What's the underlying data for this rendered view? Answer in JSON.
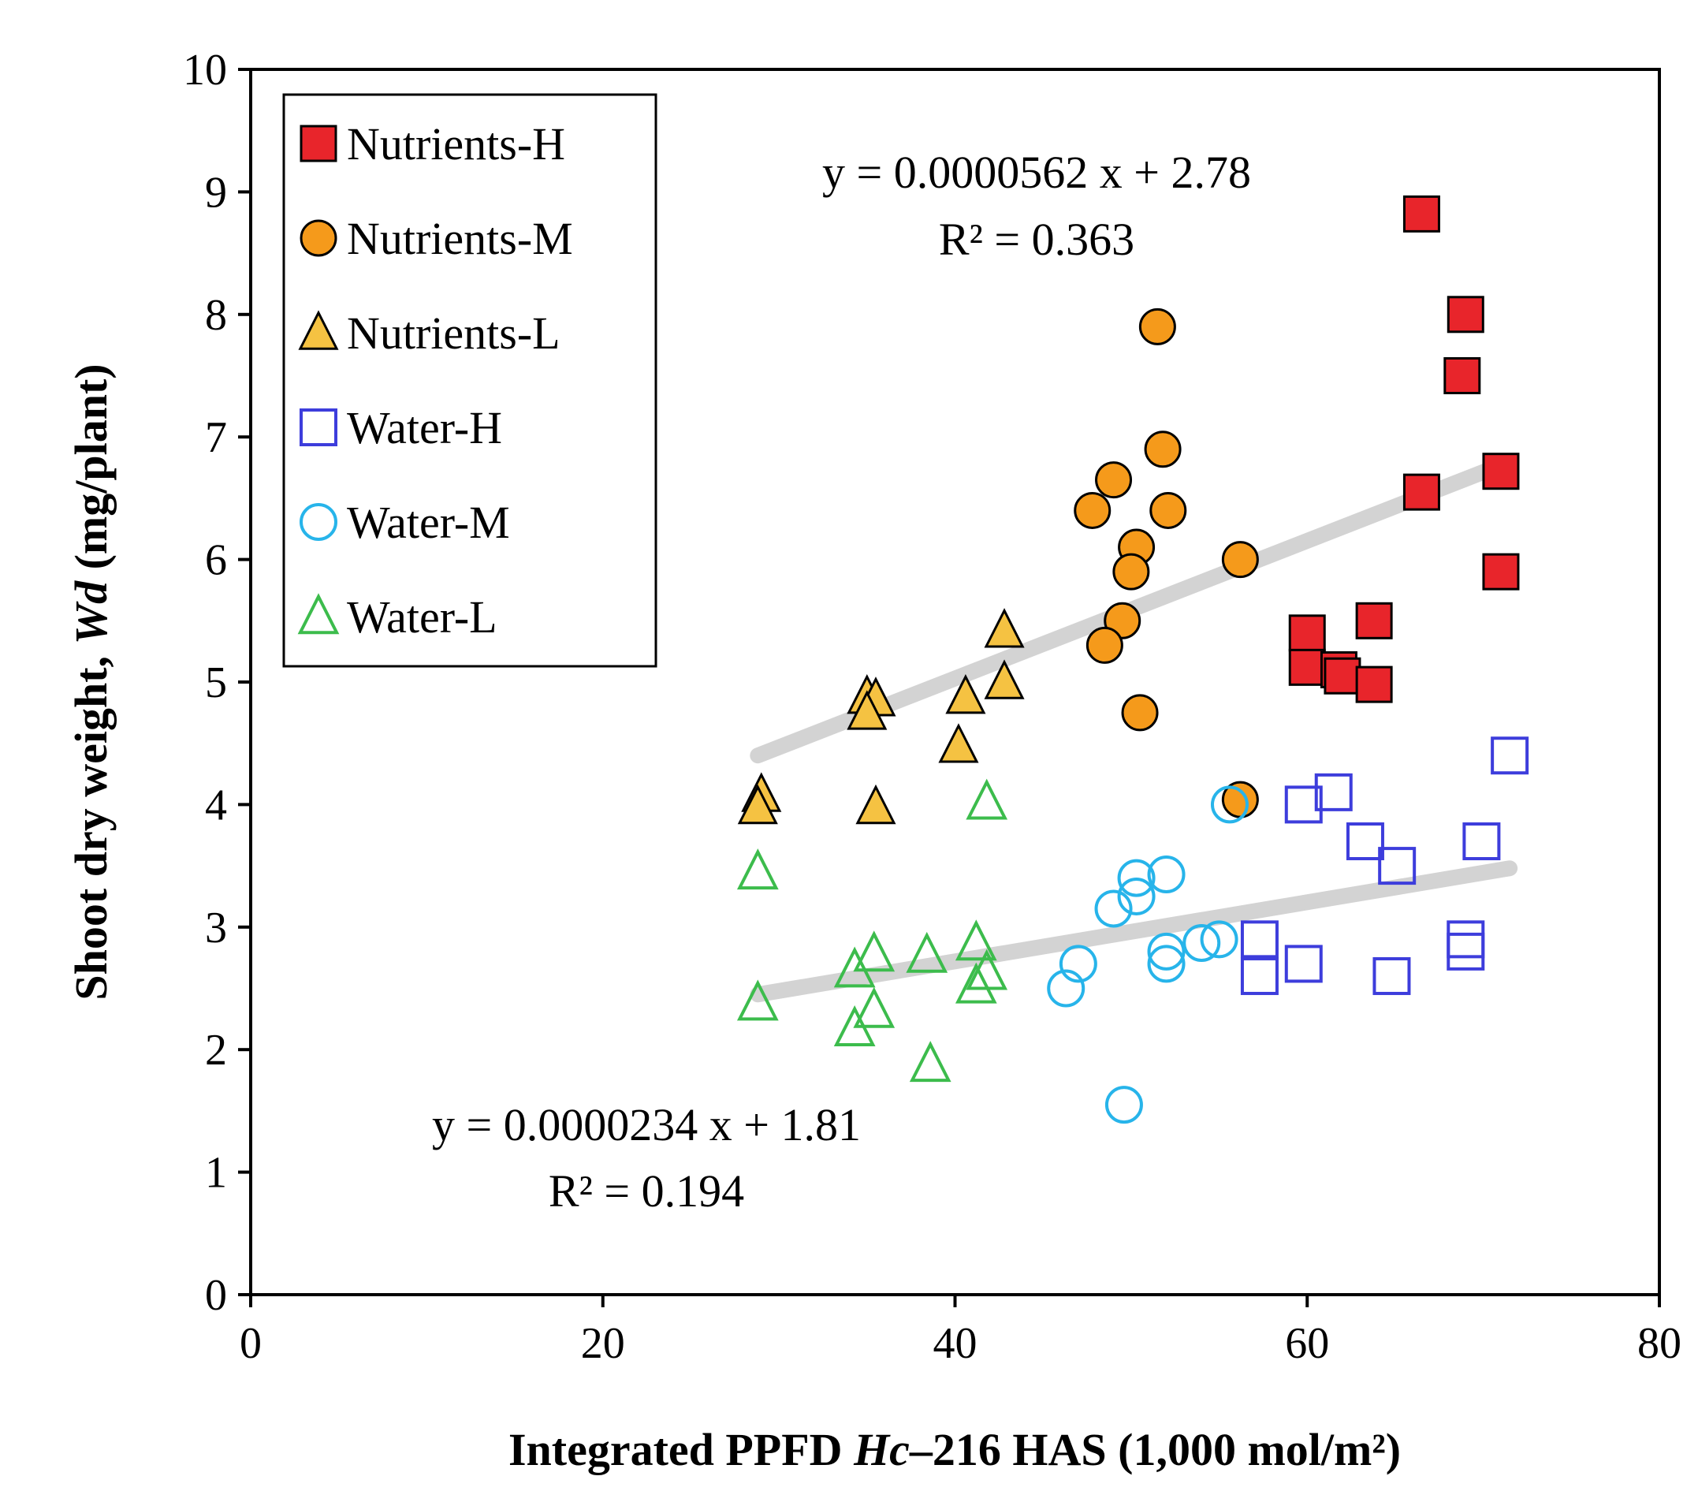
{
  "chart_data": {
    "type": "scatter",
    "title": "",
    "xlabel": {
      "pre": "Integrated PPFD ",
      "italic": "Hc",
      "post": "–216 HAS (1,000 mol/m²)"
    },
    "ylabel": {
      "pre": "Shoot dry weight, ",
      "italic": "Wd",
      "post": " (mg/plant)"
    },
    "xlim": [
      0,
      80
    ],
    "ylim": [
      0,
      10
    ],
    "xticks": [
      0,
      20,
      40,
      60,
      80
    ],
    "yticks": [
      0,
      1,
      2,
      3,
      4,
      5,
      6,
      7,
      8,
      9,
      10
    ],
    "legend_position": "top-left",
    "series": [
      {
        "name": "Nutrients-H",
        "marker": "square",
        "filled": true,
        "fill": "#e8252b",
        "stroke": "#000000",
        "points": [
          [
            66.5,
            8.82
          ],
          [
            69.0,
            8.0
          ],
          [
            68.8,
            7.5
          ],
          [
            71.0,
            6.72
          ],
          [
            66.5,
            6.55
          ],
          [
            71.0,
            5.9
          ],
          [
            63.8,
            5.5
          ],
          [
            60.0,
            5.4
          ],
          [
            60.0,
            5.12
          ],
          [
            61.8,
            5.1
          ],
          [
            62.0,
            5.05
          ],
          [
            63.8,
            4.98
          ]
        ]
      },
      {
        "name": "Nutrients-M",
        "marker": "circle",
        "filled": true,
        "fill": "#f59a1b",
        "stroke": "#000000",
        "points": [
          [
            51.5,
            7.9
          ],
          [
            51.8,
            6.9
          ],
          [
            49.0,
            6.65
          ],
          [
            47.8,
            6.4
          ],
          [
            52.1,
            6.4
          ],
          [
            50.3,
            6.1
          ],
          [
            56.2,
            6.0
          ],
          [
            50.0,
            5.9
          ],
          [
            49.5,
            5.5
          ],
          [
            48.5,
            5.3
          ],
          [
            50.5,
            4.75
          ],
          [
            56.2,
            4.04
          ]
        ]
      },
      {
        "name": "Nutrients-L",
        "marker": "triangle",
        "filled": true,
        "fill": "#f5c242",
        "stroke": "#000000",
        "points": [
          [
            42.8,
            5.42
          ],
          [
            42.8,
            5.0
          ],
          [
            35.0,
            4.88
          ],
          [
            35.5,
            4.86
          ],
          [
            40.6,
            4.88
          ],
          [
            35.0,
            4.75
          ],
          [
            40.2,
            4.48
          ],
          [
            29.0,
            4.08
          ],
          [
            28.8,
            3.98
          ],
          [
            35.5,
            3.98
          ]
        ]
      },
      {
        "name": "Water-H",
        "marker": "square",
        "filled": false,
        "fill": "none",
        "stroke": "#3d3ddc",
        "points": [
          [
            71.5,
            4.4
          ],
          [
            61.5,
            4.1
          ],
          [
            59.8,
            4.0
          ],
          [
            63.3,
            3.7
          ],
          [
            69.9,
            3.7
          ],
          [
            65.1,
            3.5
          ],
          [
            57.3,
            2.9
          ],
          [
            69.0,
            2.9
          ],
          [
            69.0,
            2.8
          ],
          [
            59.8,
            2.7
          ],
          [
            57.3,
            2.6
          ],
          [
            64.8,
            2.6
          ]
        ]
      },
      {
        "name": "Water-M",
        "marker": "circle",
        "filled": false,
        "fill": "none",
        "stroke": "#27b4ea",
        "points": [
          [
            55.6,
            4.0
          ],
          [
            52.0,
            3.43
          ],
          [
            50.3,
            3.4
          ],
          [
            50.3,
            3.25
          ],
          [
            49.0,
            3.15
          ],
          [
            55.0,
            2.9
          ],
          [
            54.0,
            2.87
          ],
          [
            52.0,
            2.8
          ],
          [
            52.0,
            2.7
          ],
          [
            47.0,
            2.7
          ],
          [
            46.3,
            2.5
          ],
          [
            49.6,
            1.55
          ]
        ]
      },
      {
        "name": "Water-L",
        "marker": "triangle",
        "filled": false,
        "fill": "none",
        "stroke": "#3cbc4c",
        "points": [
          [
            41.8,
            4.02
          ],
          [
            28.8,
            3.45
          ],
          [
            41.2,
            2.87
          ],
          [
            35.4,
            2.78
          ],
          [
            38.4,
            2.77
          ],
          [
            34.3,
            2.65
          ],
          [
            41.8,
            2.63
          ],
          [
            41.2,
            2.52
          ],
          [
            35.4,
            2.32
          ],
          [
            28.8,
            2.38
          ],
          [
            34.3,
            2.17
          ],
          [
            38.6,
            1.88
          ]
        ]
      }
    ],
    "trendlines": [
      {
        "name": "Nutrients trend",
        "x": [
          28.8,
          71.0
        ],
        "y": [
          4.4,
          6.77
        ],
        "color": "#d3d3d3",
        "equation": "y = 0.0000562 x + 2.78",
        "r2": "R² = 0.363"
      },
      {
        "name": "Water trend",
        "x": [
          28.8,
          71.5
        ],
        "y": [
          2.45,
          3.48
        ],
        "color": "#d3d3d3",
        "equation": "y = 0.0000234 x + 1.81",
        "r2": "R² = 0.194"
      }
    ]
  }
}
